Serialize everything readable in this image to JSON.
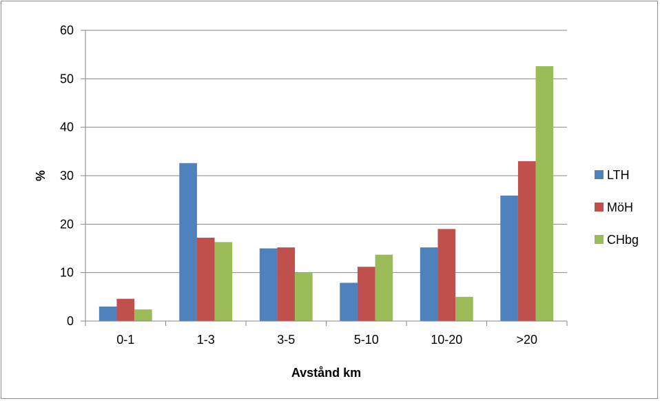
{
  "chart_data": {
    "type": "bar",
    "title": "",
    "xlabel": "Avstånd km",
    "ylabel": "%",
    "categories": [
      "0-1",
      "1-3",
      "3-5",
      "5-10",
      "10-20",
      ">20"
    ],
    "series": [
      {
        "name": "LTH",
        "color": "#4f81bd",
        "values": [
          3.0,
          32.6,
          15.0,
          7.9,
          15.2,
          25.9
        ]
      },
      {
        "name": "MöH",
        "color": "#c0504d",
        "values": [
          4.6,
          17.2,
          15.2,
          11.2,
          19.0,
          33.0
        ]
      },
      {
        "name": "CHbg",
        "color": "#9bbb59",
        "values": [
          2.4,
          16.3,
          10.0,
          13.7,
          5.0,
          52.6
        ]
      }
    ],
    "yticks": [
      "0",
      "10",
      "20",
      "30",
      "40",
      "50",
      "60"
    ],
    "ylim": [
      0,
      60
    ],
    "grid": true,
    "legend": "right"
  }
}
